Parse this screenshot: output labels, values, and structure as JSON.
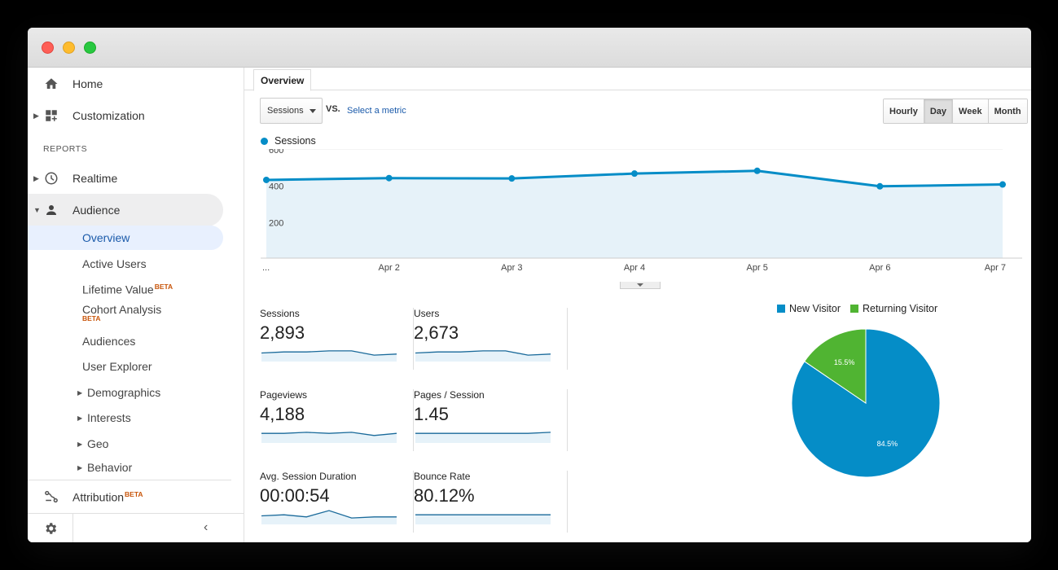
{
  "sidebar": {
    "home": "Home",
    "customization": "Customization",
    "reports_label": "REPORTS",
    "realtime": "Realtime",
    "audience": "Audience",
    "sub_items": [
      {
        "label": "Overview"
      },
      {
        "label": "Active Users"
      },
      {
        "label": "Lifetime Value",
        "badge": "BETA"
      },
      {
        "label": "Cohort Analysis",
        "badge": "BETA"
      },
      {
        "label": "Audiences"
      },
      {
        "label": "User Explorer"
      },
      {
        "label": "Demographics"
      },
      {
        "label": "Interests"
      },
      {
        "label": "Geo"
      },
      {
        "label": "Behavior"
      }
    ],
    "attribution": "Attribution",
    "attribution_badge": "BETA"
  },
  "main": {
    "tab": "Overview",
    "metric_select": "Sessions",
    "vs_label": "VS.",
    "select_metric": "Select a metric",
    "granularity": [
      "Hourly",
      "Day",
      "Week",
      "Month"
    ],
    "granularity_selected": "Day"
  },
  "colors": {
    "sessions": "#058dc7",
    "new_visitor": "#058dc7",
    "returning_visitor": "#50b432"
  },
  "chart_data": [
    {
      "type": "area",
      "title": "",
      "series": [
        {
          "name": "Sessions",
          "values": [
            430,
            440,
            438,
            465,
            480,
            395,
            405
          ]
        }
      ],
      "x": [
        "...",
        "Apr 2",
        "Apr 3",
        "Apr 4",
        "Apr 5",
        "Apr 6",
        "Apr 7"
      ],
      "yticks": [
        "600",
        "400",
        "200"
      ],
      "ylim": [
        0,
        600
      ]
    },
    {
      "type": "pie",
      "categories": [
        "New Visitor",
        "Returning Visitor"
      ],
      "values": [
        84.5,
        15.5
      ],
      "labels": [
        "84.5%",
        "15.5%"
      ]
    }
  ],
  "stats": [
    {
      "name": "Sessions",
      "value": "2,893",
      "spark": [
        5,
        6,
        6,
        7,
        7,
        3,
        4
      ]
    },
    {
      "name": "Users",
      "value": "2,673",
      "spark": [
        5,
        6,
        6,
        7,
        7,
        3,
        4
      ]
    },
    {
      "name": "Pageviews",
      "value": "4,188",
      "spark": [
        6,
        6,
        7,
        6,
        7,
        4,
        6
      ]
    },
    {
      "name": "Pages / Session",
      "value": "1.45",
      "spark": [
        6,
        6,
        6,
        6,
        6,
        6,
        7
      ]
    },
    {
      "name": "Avg. Session Duration",
      "value": "00:00:54",
      "spark": [
        5,
        6,
        4,
        10,
        3,
        4,
        4
      ]
    },
    {
      "name": "Bounce Rate",
      "value": "80.12%",
      "spark": [
        6,
        6,
        6,
        6,
        6,
        6,
        6
      ]
    }
  ]
}
